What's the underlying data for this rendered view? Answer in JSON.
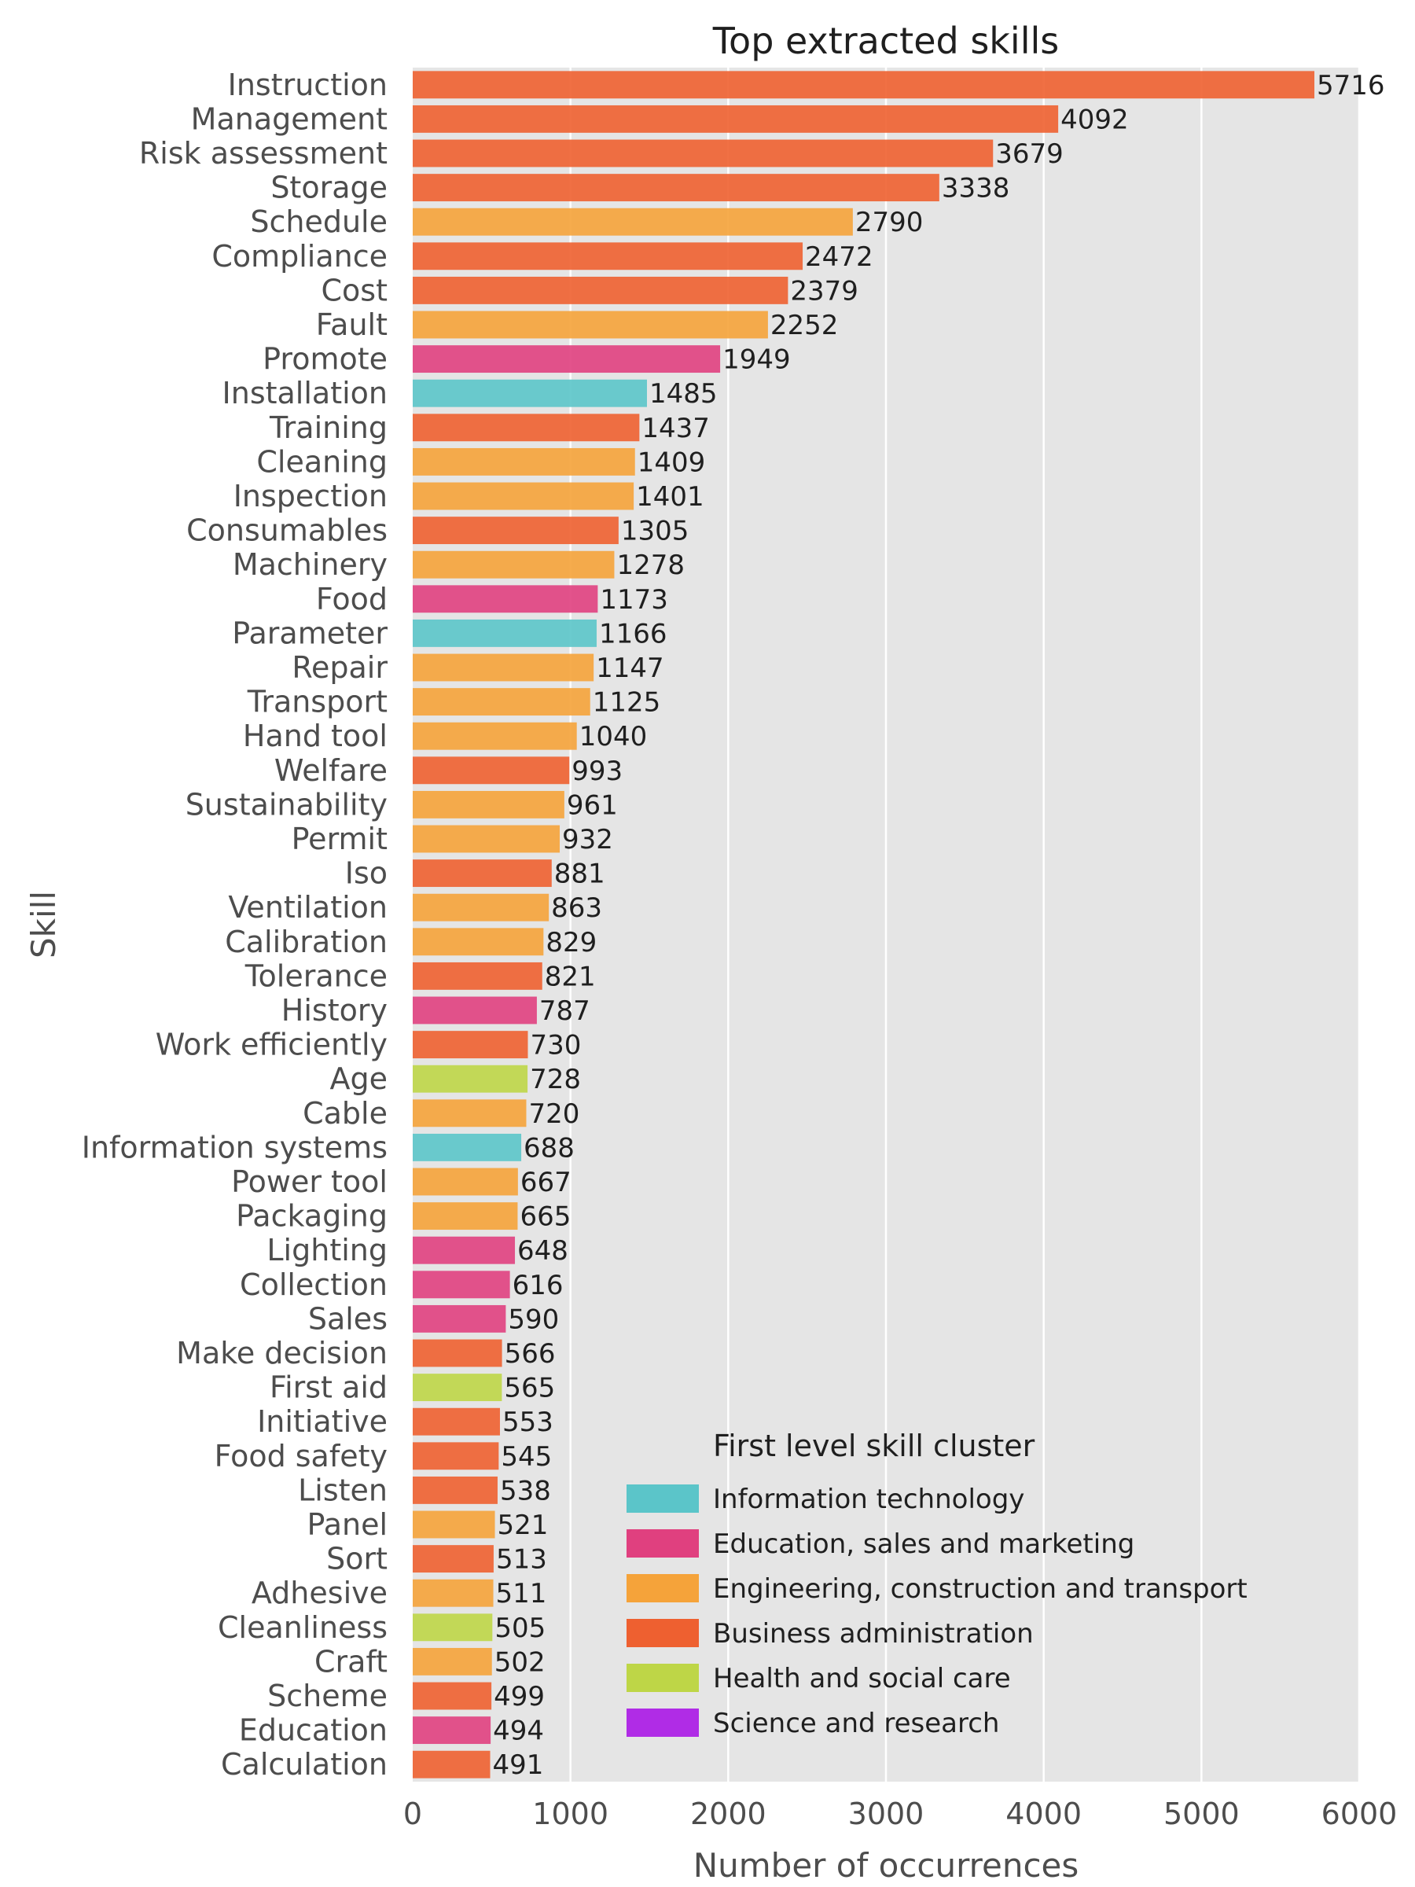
{
  "chart_data": {
    "type": "bar",
    "orientation": "horizontal",
    "title": "Top extracted skills",
    "xlabel": "Number of occurrences",
    "ylabel": "Skill",
    "xlim": [
      0,
      6000
    ],
    "xticks": [
      0,
      1000,
      2000,
      3000,
      4000,
      5000,
      6000
    ],
    "grid": "vertical",
    "legend_position": "lower-right",
    "legend_title": "First level skill cluster",
    "clusters": [
      {
        "name": "Information technology",
        "color": "#5BC5C9"
      },
      {
        "name": "Education, sales and marketing",
        "color": "#E0407F"
      },
      {
        "name": "Engineering, construction and transport",
        "color": "#F5A33A"
      },
      {
        "name": "Business administration",
        "color": "#EE6030"
      },
      {
        "name": "Health and social care",
        "color": "#BED647"
      },
      {
        "name": "Science and research",
        "color": "#B02CE6"
      }
    ],
    "bars": [
      {
        "category": "Instruction",
        "value": 5716,
        "cluster": 3
      },
      {
        "category": "Management",
        "value": 4092,
        "cluster": 3
      },
      {
        "category": "Risk assessment",
        "value": 3679,
        "cluster": 3
      },
      {
        "category": "Storage",
        "value": 3338,
        "cluster": 3
      },
      {
        "category": "Schedule",
        "value": 2790,
        "cluster": 2
      },
      {
        "category": "Compliance",
        "value": 2472,
        "cluster": 3
      },
      {
        "category": "Cost",
        "value": 2379,
        "cluster": 3
      },
      {
        "category": "Fault",
        "value": 2252,
        "cluster": 2
      },
      {
        "category": "Promote",
        "value": 1949,
        "cluster": 1
      },
      {
        "category": "Installation",
        "value": 1485,
        "cluster": 0
      },
      {
        "category": "Training",
        "value": 1437,
        "cluster": 3
      },
      {
        "category": "Cleaning",
        "value": 1409,
        "cluster": 2
      },
      {
        "category": "Inspection",
        "value": 1401,
        "cluster": 2
      },
      {
        "category": "Consumables",
        "value": 1305,
        "cluster": 3
      },
      {
        "category": "Machinery",
        "value": 1278,
        "cluster": 2
      },
      {
        "category": "Food",
        "value": 1173,
        "cluster": 1
      },
      {
        "category": "Parameter",
        "value": 1166,
        "cluster": 0
      },
      {
        "category": "Repair",
        "value": 1147,
        "cluster": 2
      },
      {
        "category": "Transport",
        "value": 1125,
        "cluster": 2
      },
      {
        "category": "Hand tool",
        "value": 1040,
        "cluster": 2
      },
      {
        "category": "Welfare",
        "value": 993,
        "cluster": 3
      },
      {
        "category": "Sustainability",
        "value": 961,
        "cluster": 2
      },
      {
        "category": "Permit",
        "value": 932,
        "cluster": 2
      },
      {
        "category": "Iso",
        "value": 881,
        "cluster": 3
      },
      {
        "category": "Ventilation",
        "value": 863,
        "cluster": 2
      },
      {
        "category": "Calibration",
        "value": 829,
        "cluster": 2
      },
      {
        "category": "Tolerance",
        "value": 821,
        "cluster": 3
      },
      {
        "category": "History",
        "value": 787,
        "cluster": 1
      },
      {
        "category": "Work efficiently",
        "value": 730,
        "cluster": 3
      },
      {
        "category": "Age",
        "value": 728,
        "cluster": 4
      },
      {
        "category": "Cable",
        "value": 720,
        "cluster": 2
      },
      {
        "category": "Information systems",
        "value": 688,
        "cluster": 0
      },
      {
        "category": "Power tool",
        "value": 667,
        "cluster": 2
      },
      {
        "category": "Packaging",
        "value": 665,
        "cluster": 2
      },
      {
        "category": "Lighting",
        "value": 648,
        "cluster": 1
      },
      {
        "category": "Collection",
        "value": 616,
        "cluster": 1
      },
      {
        "category": "Sales",
        "value": 590,
        "cluster": 1
      },
      {
        "category": "Make decision",
        "value": 566,
        "cluster": 3
      },
      {
        "category": "First aid",
        "value": 565,
        "cluster": 4
      },
      {
        "category": "Initiative",
        "value": 553,
        "cluster": 3
      },
      {
        "category": "Food safety",
        "value": 545,
        "cluster": 3
      },
      {
        "category": "Listen",
        "value": 538,
        "cluster": 3
      },
      {
        "category": "Panel",
        "value": 521,
        "cluster": 2
      },
      {
        "category": "Sort",
        "value": 513,
        "cluster": 3
      },
      {
        "category": "Adhesive",
        "value": 511,
        "cluster": 2
      },
      {
        "category": "Cleanliness",
        "value": 505,
        "cluster": 4
      },
      {
        "category": "Craft",
        "value": 502,
        "cluster": 2
      },
      {
        "category": "Scheme",
        "value": 499,
        "cluster": 3
      },
      {
        "category": "Education",
        "value": 494,
        "cluster": 1
      },
      {
        "category": "Calculation",
        "value": 491,
        "cluster": 3
      }
    ]
  }
}
